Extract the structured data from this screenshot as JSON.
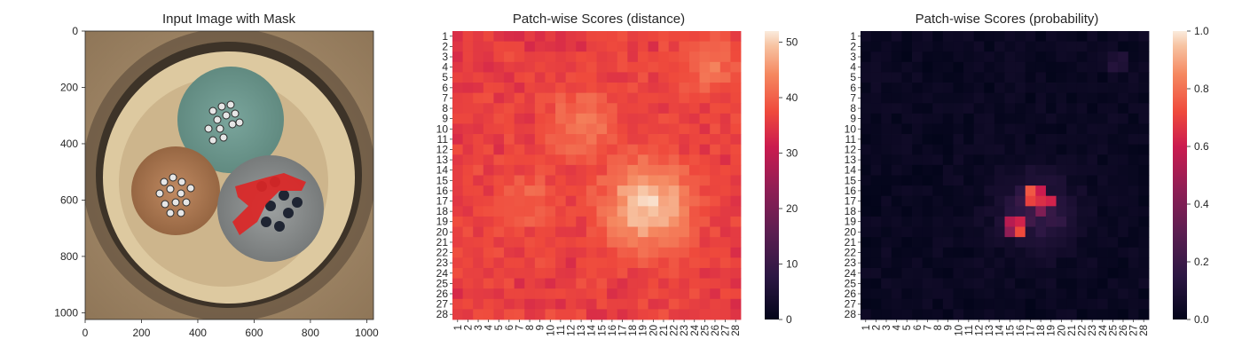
{
  "chart_data": [
    {
      "type": "image",
      "title": "Input Image with Mask",
      "xlim": [
        0,
        1024
      ],
      "ylim": [
        1024,
        0
      ],
      "xticks": [
        0,
        200,
        400,
        600,
        800,
        1000
      ],
      "yticks": [
        0,
        200,
        400,
        600,
        800,
        1000
      ]
    },
    {
      "type": "heatmap",
      "title": "Patch-wise Scores (distance)",
      "rows": 28,
      "cols": 28,
      "vmin": 0,
      "vmax": 52,
      "colorbar_ticks": [
        0,
        10,
        20,
        30,
        40,
        50
      ],
      "colormap": "rocket",
      "regions": [
        {
          "label": "high",
          "row_center": 17.5,
          "col_center": 19.5,
          "peak": 50
        },
        {
          "label": "medium",
          "row_center": 9.5,
          "col_center": 13,
          "peak": 43
        },
        {
          "label": "medium",
          "row_center": 17,
          "col_center": 8,
          "peak": 40
        },
        {
          "label": "medium",
          "row_center": 3.5,
          "col_center": 25.5,
          "peak": 42
        }
      ],
      "background_level": 35
    },
    {
      "type": "heatmap",
      "title": "Patch-wise Scores (probability)",
      "rows": 28,
      "cols": 28,
      "vmin": 0,
      "vmax": 1,
      "colorbar_ticks": [
        "0.0",
        "0.2",
        "0.4",
        "0.6",
        "0.8",
        "1.0"
      ],
      "colormap": "rocket",
      "hot_cells": [
        {
          "row": 16,
          "col": 17,
          "value": 0.75
        },
        {
          "row": 16,
          "col": 18,
          "value": 0.6
        },
        {
          "row": 17,
          "col": 17,
          "value": 0.7
        },
        {
          "row": 17,
          "col": 18,
          "value": 0.65
        },
        {
          "row": 17,
          "col": 19,
          "value": 0.62
        },
        {
          "row": 18,
          "col": 18,
          "value": 0.4
        },
        {
          "row": 19,
          "col": 15,
          "value": 0.55
        },
        {
          "row": 19,
          "col": 16,
          "value": 0.62
        },
        {
          "row": 20,
          "col": 16,
          "value": 0.72
        },
        {
          "row": 20,
          "col": 15,
          "value": 0.45
        }
      ]
    }
  ]
}
